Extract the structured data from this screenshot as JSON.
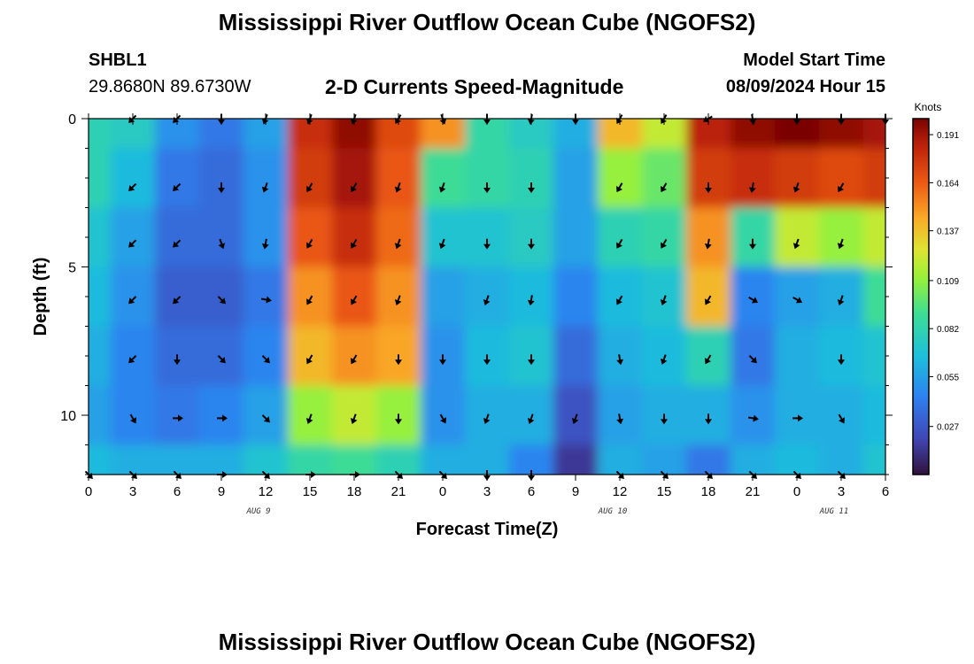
{
  "page": {
    "title": "Mississippi River Outflow Ocean Cube (NGOFS2)",
    "bottom_title": "Mississippi River Outflow Ocean Cube (NGOFS2)"
  },
  "station": {
    "id": "SHBL1",
    "coords": "29.8680N  89.6730W"
  },
  "subtitle": "2-D Currents Speed-Magnitude",
  "model": {
    "label": "Model Start Time",
    "value": "08/09/2024 Hour 15"
  },
  "chart_data": {
    "type": "heatmap",
    "title": "2-D Currents Speed-Magnitude",
    "xlabel": "Forecast Time(Z)",
    "ylabel": "Depth (ft)",
    "x_ticks": [
      "0",
      "3",
      "6",
      "9",
      "12",
      "15",
      "18",
      "21",
      "0",
      "3",
      "6",
      "9",
      "12",
      "15",
      "18",
      "21",
      "0",
      "3",
      "6"
    ],
    "date_labels": [
      {
        "label": "AUG 9",
        "tick_index": 4
      },
      {
        "label": "AUG 10",
        "tick_index": 12
      },
      {
        "label": "AUG 11",
        "tick_index": 17
      }
    ],
    "y_ticks": [
      "0",
      "5",
      "10"
    ],
    "ylim": [
      0,
      12
    ],
    "hours_range": [
      0,
      54
    ],
    "colorbar": {
      "unit": "Knots",
      "ticks": [
        "0.191",
        "0.164",
        "0.137",
        "0.109",
        "0.082",
        "0.055",
        "0.027"
      ],
      "range": [
        0.0,
        0.2
      ]
    },
    "depth_levels_ft": [
      0,
      2,
      4,
      6,
      8,
      10,
      12
    ],
    "speed_knots": [
      [
        0.08,
        0.075,
        0.05,
        0.04,
        0.055,
        0.18,
        0.195,
        0.17,
        0.15,
        0.085,
        0.075,
        0.06,
        0.14,
        0.12,
        0.185,
        0.195,
        0.2,
        0.195,
        0.19
      ],
      [
        0.08,
        0.065,
        0.04,
        0.035,
        0.05,
        0.175,
        0.19,
        0.165,
        0.09,
        0.085,
        0.08,
        0.055,
        0.11,
        0.1,
        0.175,
        0.18,
        0.175,
        0.17,
        0.175
      ],
      [
        0.07,
        0.055,
        0.035,
        0.035,
        0.05,
        0.165,
        0.18,
        0.16,
        0.07,
        0.07,
        0.075,
        0.055,
        0.08,
        0.085,
        0.15,
        0.085,
        0.12,
        0.11,
        0.12
      ],
      [
        0.065,
        0.05,
        0.03,
        0.03,
        0.04,
        0.15,
        0.165,
        0.15,
        0.055,
        0.06,
        0.065,
        0.045,
        0.065,
        0.07,
        0.14,
        0.045,
        0.055,
        0.06,
        0.09
      ],
      [
        0.06,
        0.045,
        0.035,
        0.035,
        0.045,
        0.14,
        0.15,
        0.145,
        0.05,
        0.065,
        0.07,
        0.035,
        0.06,
        0.065,
        0.08,
        0.04,
        0.06,
        0.065,
        0.07
      ],
      [
        0.055,
        0.045,
        0.04,
        0.045,
        0.055,
        0.11,
        0.12,
        0.11,
        0.05,
        0.06,
        0.06,
        0.025,
        0.055,
        0.06,
        0.06,
        0.05,
        0.06,
        0.06,
        0.065
      ],
      [
        0.065,
        0.06,
        0.06,
        0.06,
        0.07,
        0.085,
        0.09,
        0.08,
        0.06,
        0.06,
        0.045,
        0.015,
        0.06,
        0.055,
        0.04,
        0.06,
        0.065,
        0.06,
        0.07
      ]
    ],
    "arrow_rows_ft": [
      0,
      2.3,
      4.2,
      6.1,
      8.1,
      10.1,
      12
    ],
    "arrow_cols_hr": [
      0,
      3,
      6,
      9,
      12,
      15,
      18,
      21,
      24,
      27,
      30,
      33,
      36,
      39,
      42,
      45,
      48,
      51,
      54
    ],
    "arrow_directions_deg": [
      [
        null,
        225,
        225,
        180,
        200,
        200,
        200,
        210,
        160,
        180,
        190,
        180,
        210,
        210,
        240,
        170,
        180,
        180,
        180
      ],
      [
        null,
        225,
        225,
        180,
        200,
        210,
        210,
        200,
        200,
        180,
        180,
        null,
        210,
        210,
        180,
        190,
        200,
        210,
        null
      ],
      [
        null,
        225,
        225,
        160,
        190,
        210,
        210,
        200,
        200,
        180,
        180,
        null,
        210,
        210,
        190,
        180,
        200,
        200,
        null
      ],
      [
        null,
        225,
        225,
        135,
        100,
        210,
        210,
        200,
        null,
        200,
        190,
        null,
        210,
        200,
        210,
        120,
        120,
        200,
        null
      ],
      [
        null,
        225,
        180,
        135,
        135,
        210,
        210,
        180,
        180,
        180,
        180,
        null,
        170,
        200,
        210,
        135,
        null,
        180,
        null
      ],
      [
        null,
        150,
        90,
        90,
        135,
        200,
        200,
        180,
        150,
        200,
        200,
        200,
        170,
        180,
        180,
        100,
        90,
        150,
        null
      ],
      [
        135,
        135,
        135,
        90,
        135,
        90,
        90,
        135,
        135,
        180,
        180,
        null,
        135,
        135,
        135,
        135,
        135,
        135,
        null
      ]
    ]
  }
}
